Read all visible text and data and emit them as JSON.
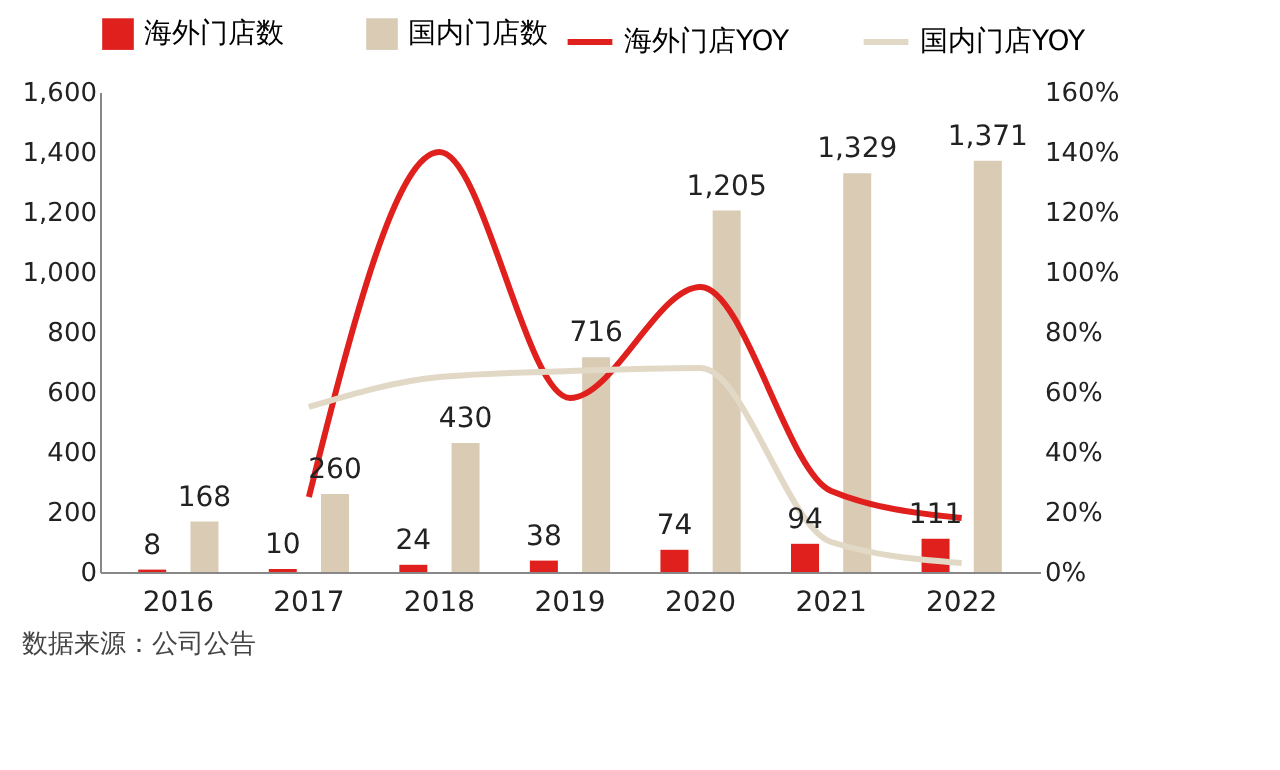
{
  "chart_data": {
    "type": "bar",
    "categories": [
      "2016",
      "2017",
      "2018",
      "2019",
      "2020",
      "2021",
      "2022"
    ],
    "series": [
      {
        "name": "海外门店数",
        "color": "#e0201c",
        "values": [
          8,
          10,
          24,
          38,
          74,
          94,
          111
        ],
        "value_labels": [
          "8",
          "10",
          "24",
          "38",
          "74",
          "94",
          "111"
        ]
      },
      {
        "name": "国内门店数",
        "color": "#d9cbb4",
        "values": [
          168,
          260,
          430,
          716,
          1205,
          1329,
          1371
        ],
        "value_labels": [
          "168",
          "260",
          "430",
          "716",
          "1,205",
          "1,329",
          "1,371"
        ]
      },
      {
        "name": "海外门店YOY",
        "type": "line",
        "axis": "y2",
        "color": "#e0201c",
        "values": [
          null,
          25,
          140,
          58,
          95,
          27,
          18
        ]
      },
      {
        "name": "国内门店YOY",
        "type": "line",
        "axis": "y2",
        "color": "#e2d8c6",
        "values": [
          null,
          55,
          65,
          67,
          68,
          10,
          3
        ]
      }
    ],
    "ylim": [
      0,
      1600
    ],
    "yticks": [
      0,
      {
        "value": 200,
        "label": "200"
      },
      {
        "value": 400,
        "label": "400"
      },
      {
        "value": 600,
        "label": "600"
      },
      {
        "value": 800,
        "label": "800"
      },
      {
        "value": 1000,
        "label": "1,000"
      },
      {
        "value": 1200,
        "label": "1,200"
      },
      {
        "value": 1400,
        "label": "1,400"
      },
      {
        "value": 1600,
        "label": "1,600"
      }
    ],
    "y2lim": [
      0,
      160
    ],
    "y2ticks": [
      {
        "value": 0,
        "label": "0%"
      },
      {
        "value": 20,
        "label": "20%"
      },
      {
        "value": 40,
        "label": "40%"
      },
      {
        "value": 60,
        "label": "60%"
      },
      {
        "value": 80,
        "label": "80%"
      },
      {
        "value": 100,
        "label": "100%"
      },
      {
        "value": 120,
        "label": "120%"
      },
      {
        "value": 140,
        "label": "140%"
      },
      {
        "value": 160,
        "label": "160%"
      }
    ],
    "grid": false,
    "legend": "top",
    "line_style": "solid",
    "marker": "none",
    "annotations": [
      "数据来源：公司公告"
    ]
  }
}
